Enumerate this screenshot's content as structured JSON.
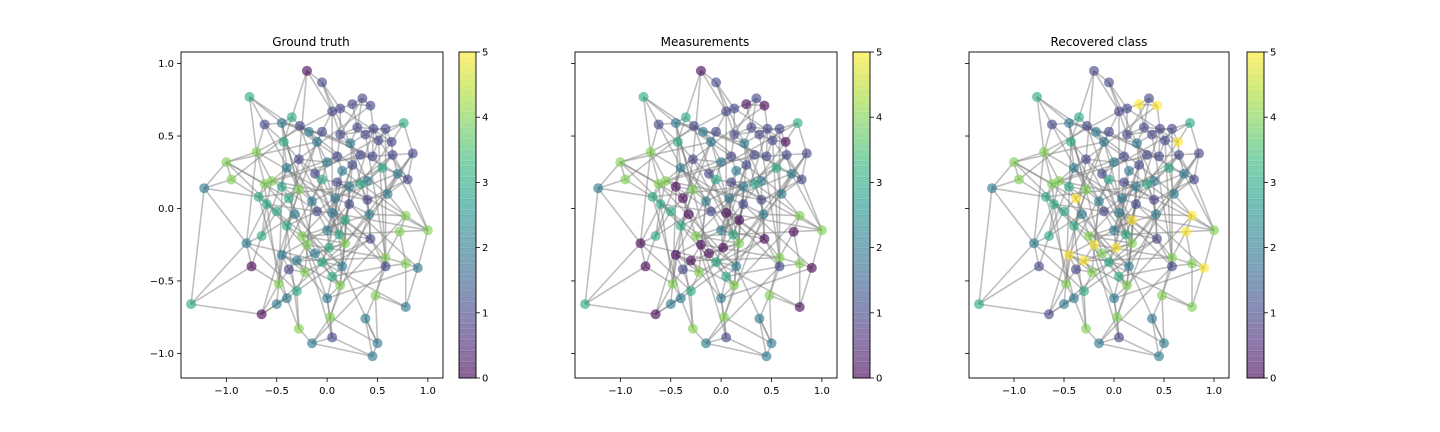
{
  "colors": {
    "viridis": [
      "#440154",
      "#482878",
      "#3e4989",
      "#31688e",
      "#26828e",
      "#1f9e89",
      "#35b779",
      "#6ece58",
      "#b5de2b",
      "#fde725"
    ],
    "edge": "#808080"
  },
  "chart_data": {
    "type": "scatter",
    "description_kind": "network graph (nodes with edges) colored by class, three panels",
    "panels": [
      {
        "title": "Ground truth",
        "class_key": "truth"
      },
      {
        "title": "Measurements",
        "class_key": "meas"
      },
      {
        "title": "Recovered class",
        "class_key": "rec"
      }
    ],
    "xlim": [
      -1.45,
      1.15
    ],
    "ylim": [
      -1.17,
      1.08
    ],
    "xticks": [
      -1.0,
      -0.5,
      0.0,
      0.5,
      1.0
    ],
    "xtick_labels": [
      "−1.0",
      "−0.5",
      "0.0",
      "0.5",
      "1.0"
    ],
    "yticks": [
      1.0,
      0.5,
      0.0,
      -0.5,
      -1.0
    ],
    "ytick_labels": [
      "1.0",
      "0.5",
      "0.0",
      "−0.5",
      "−1.0"
    ],
    "sharey": true,
    "colorbar": {
      "min": 0,
      "max": 5,
      "ticks": [
        0,
        1,
        2,
        3,
        4,
        5
      ],
      "tick_labels": [
        "0",
        "1",
        "2",
        "3",
        "4",
        "5"
      ],
      "colormap": "viridis"
    },
    "nodes": [
      {
        "x": -0.2,
        "y": 0.95,
        "truth": 0,
        "meas": 0,
        "rec": 1
      },
      {
        "x": -0.05,
        "y": 0.87,
        "truth": 1,
        "meas": 1,
        "rec": 1
      },
      {
        "x": -0.77,
        "y": 0.77,
        "truth": 3,
        "meas": 3,
        "rec": 3
      },
      {
        "x": 0.35,
        "y": 0.76,
        "truth": 1,
        "meas": 1,
        "rec": 1
      },
      {
        "x": 0.25,
        "y": 0.72,
        "truth": 1,
        "meas": 0,
        "rec": 5
      },
      {
        "x": 0.43,
        "y": 0.71,
        "truth": 1,
        "meas": 0,
        "rec": 5
      },
      {
        "x": 0.13,
        "y": 0.69,
        "truth": 1,
        "meas": 1,
        "rec": 1
      },
      {
        "x": 0.05,
        "y": 0.67,
        "truth": 1,
        "meas": 1,
        "rec": 1
      },
      {
        "x": -0.35,
        "y": 0.63,
        "truth": 3,
        "meas": 3,
        "rec": 3
      },
      {
        "x": -0.62,
        "y": 0.58,
        "truth": 1,
        "meas": 1,
        "rec": 1
      },
      {
        "x": -0.45,
        "y": 0.59,
        "truth": 2,
        "meas": 2,
        "rec": 2
      },
      {
        "x": 0.76,
        "y": 0.59,
        "truth": 3,
        "meas": 3,
        "rec": 3
      },
      {
        "x": -0.27,
        "y": 0.57,
        "truth": 1,
        "meas": 1,
        "rec": 1
      },
      {
        "x": 0.3,
        "y": 0.56,
        "truth": 1,
        "meas": 1,
        "rec": 1
      },
      {
        "x": 0.46,
        "y": 0.55,
        "truth": 1,
        "meas": 1,
        "rec": 1
      },
      {
        "x": 0.58,
        "y": 0.55,
        "truth": 1,
        "meas": 1,
        "rec": 1
      },
      {
        "x": -0.18,
        "y": 0.53,
        "truth": 2,
        "meas": 2,
        "rec": 2
      },
      {
        "x": -0.05,
        "y": 0.53,
        "truth": 1,
        "meas": 1,
        "rec": 1
      },
      {
        "x": 0.13,
        "y": 0.51,
        "truth": 1,
        "meas": 1,
        "rec": 1
      },
      {
        "x": 0.38,
        "y": 0.51,
        "truth": 1,
        "meas": 1,
        "rec": 1
      },
      {
        "x": 0.64,
        "y": 0.46,
        "truth": 1,
        "meas": 0,
        "rec": 5
      },
      {
        "x": 0.51,
        "y": 0.47,
        "truth": 1,
        "meas": 1,
        "rec": 1
      },
      {
        "x": -0.43,
        "y": 0.46,
        "truth": 3,
        "meas": 3,
        "rec": 3
      },
      {
        "x": -0.1,
        "y": 0.46,
        "truth": 2,
        "meas": 2,
        "rec": 2
      },
      {
        "x": 0.23,
        "y": 0.45,
        "truth": 2,
        "meas": 2,
        "rec": 2
      },
      {
        "x": -0.7,
        "y": 0.39,
        "truth": 4,
        "meas": 4,
        "rec": 4
      },
      {
        "x": 0.85,
        "y": 0.38,
        "truth": 1,
        "meas": 1,
        "rec": 1
      },
      {
        "x": 0.65,
        "y": 0.37,
        "truth": 1,
        "meas": 1,
        "rec": 1
      },
      {
        "x": 0.33,
        "y": 0.37,
        "truth": 1,
        "meas": 1,
        "rec": 1
      },
      {
        "x": 0.1,
        "y": 0.36,
        "truth": 1,
        "meas": 1,
        "rec": 1
      },
      {
        "x": 0.45,
        "y": 0.36,
        "truth": 1,
        "meas": 1,
        "rec": 1
      },
      {
        "x": -0.28,
        "y": 0.34,
        "truth": 1,
        "meas": 1,
        "rec": 1
      },
      {
        "x": 0.0,
        "y": 0.32,
        "truth": 2,
        "meas": 2,
        "rec": 2
      },
      {
        "x": -1.0,
        "y": 0.32,
        "truth": 4,
        "meas": 4,
        "rec": 4
      },
      {
        "x": 0.25,
        "y": 0.3,
        "truth": 1,
        "meas": 1,
        "rec": 1
      },
      {
        "x": 0.55,
        "y": 0.28,
        "truth": 3,
        "meas": 3,
        "rec": 3
      },
      {
        "x": -0.4,
        "y": 0.28,
        "truth": 2,
        "meas": 2,
        "rec": 2
      },
      {
        "x": 0.15,
        "y": 0.26,
        "truth": 2,
        "meas": 2,
        "rec": 2
      },
      {
        "x": 0.7,
        "y": 0.24,
        "truth": 2,
        "meas": 2,
        "rec": 2
      },
      {
        "x": -0.12,
        "y": 0.24,
        "truth": 1,
        "meas": 1,
        "rec": 1
      },
      {
        "x": -0.95,
        "y": 0.2,
        "truth": 4,
        "meas": 4,
        "rec": 4
      },
      {
        "x": 0.8,
        "y": 0.2,
        "truth": 1,
        "meas": 1,
        "rec": 1
      },
      {
        "x": -0.05,
        "y": 0.2,
        "truth": 3,
        "meas": 3,
        "rec": 3
      },
      {
        "x": 0.4,
        "y": 0.19,
        "truth": 2,
        "meas": 2,
        "rec": 2
      },
      {
        "x": 0.1,
        "y": 0.18,
        "truth": 1,
        "meas": 1,
        "rec": 1
      },
      {
        "x": -0.62,
        "y": 0.17,
        "truth": 4,
        "meas": 4,
        "rec": 4
      },
      {
        "x": -0.55,
        "y": 0.19,
        "truth": 4,
        "meas": 4,
        "rec": 4
      },
      {
        "x": 0.33,
        "y": 0.17,
        "truth": 3,
        "meas": 3,
        "rec": 3
      },
      {
        "x": -0.45,
        "y": 0.15,
        "truth": 3,
        "meas": 0,
        "rec": 3
      },
      {
        "x": 0.22,
        "y": 0.15,
        "truth": 2,
        "meas": 2,
        "rec": 2
      },
      {
        "x": -1.22,
        "y": 0.14,
        "truth": 2,
        "meas": 2,
        "rec": 2
      },
      {
        "x": -0.28,
        "y": 0.13,
        "truth": 4,
        "meas": 4,
        "rec": 4
      },
      {
        "x": 0.6,
        "y": 0.1,
        "truth": 2,
        "meas": 2,
        "rec": 2
      },
      {
        "x": -0.68,
        "y": 0.08,
        "truth": 3,
        "meas": 3,
        "rec": 3
      },
      {
        "x": -0.38,
        "y": 0.07,
        "truth": 3,
        "meas": 0,
        "rec": 5
      },
      {
        "x": 0.08,
        "y": 0.07,
        "truth": 2,
        "meas": 2,
        "rec": 2
      },
      {
        "x": 0.4,
        "y": 0.06,
        "truth": 1,
        "meas": 1,
        "rec": 1
      },
      {
        "x": -0.6,
        "y": 0.03,
        "truth": 3,
        "meas": 3,
        "rec": 3
      },
      {
        "x": -0.15,
        "y": 0.05,
        "truth": 2,
        "meas": 2,
        "rec": 2
      },
      {
        "x": 0.22,
        "y": 0.03,
        "truth": 1,
        "meas": 1,
        "rec": 1
      },
      {
        "x": 0.78,
        "y": -0.05,
        "truth": 4,
        "meas": 4,
        "rec": 5
      },
      {
        "x": -0.5,
        "y": -0.02,
        "truth": 3,
        "meas": 3,
        "rec": 3
      },
      {
        "x": -0.1,
        "y": -0.02,
        "truth": 1,
        "meas": 1,
        "rec": 1
      },
      {
        "x": 0.05,
        "y": -0.03,
        "truth": 2,
        "meas": 0,
        "rec": 2
      },
      {
        "x": 0.42,
        "y": -0.04,
        "truth": 2,
        "meas": 2,
        "rec": 2
      },
      {
        "x": -0.32,
        "y": -0.04,
        "truth": 2,
        "meas": 0,
        "rec": 2
      },
      {
        "x": 0.18,
        "y": -0.08,
        "truth": 3,
        "meas": 0,
        "rec": 5
      },
      {
        "x": -0.4,
        "y": -0.12,
        "truth": 3,
        "meas": 3,
        "rec": 3
      },
      {
        "x": 0.72,
        "y": -0.16,
        "truth": 4,
        "meas": 0,
        "rec": 5
      },
      {
        "x": 0.0,
        "y": -0.15,
        "truth": 2,
        "meas": 2,
        "rec": 2
      },
      {
        "x": 1.0,
        "y": -0.15,
        "truth": 4,
        "meas": 4,
        "rec": 4
      },
      {
        "x": -0.65,
        "y": -0.19,
        "truth": 3,
        "meas": 3,
        "rec": 3
      },
      {
        "x": 0.12,
        "y": -0.18,
        "truth": 3,
        "meas": 3,
        "rec": 3
      },
      {
        "x": -0.25,
        "y": -0.19,
        "truth": 4,
        "meas": 4,
        "rec": 4
      },
      {
        "x": 0.43,
        "y": -0.21,
        "truth": 1,
        "meas": 0,
        "rec": 1
      },
      {
        "x": -0.8,
        "y": -0.24,
        "truth": 2,
        "meas": 0,
        "rec": 2
      },
      {
        "x": 0.18,
        "y": -0.24,
        "truth": 4,
        "meas": 4,
        "rec": 4
      },
      {
        "x": -0.2,
        "y": -0.25,
        "truth": 4,
        "meas": 0,
        "rec": 5
      },
      {
        "x": 0.02,
        "y": -0.27,
        "truth": 3,
        "meas": 0,
        "rec": 5
      },
      {
        "x": -0.45,
        "y": -0.32,
        "truth": 2,
        "meas": 0,
        "rec": 5
      },
      {
        "x": -0.12,
        "y": -0.31,
        "truth": 2,
        "meas": 0,
        "rec": 4
      },
      {
        "x": -0.75,
        "y": -0.4,
        "truth": 0,
        "meas": 0,
        "rec": 1
      },
      {
        "x": 0.58,
        "y": -0.34,
        "truth": 4,
        "meas": 4,
        "rec": 4
      },
      {
        "x": -0.3,
        "y": -0.36,
        "truth": 2,
        "meas": 0,
        "rec": 5
      },
      {
        "x": 0.78,
        "y": -0.38,
        "truth": 4,
        "meas": 4,
        "rec": 4
      },
      {
        "x": -0.05,
        "y": -0.37,
        "truth": 3,
        "meas": 3,
        "rec": 3
      },
      {
        "x": 0.9,
        "y": -0.41,
        "truth": 2,
        "meas": 0,
        "rec": 5
      },
      {
        "x": 0.15,
        "y": -0.4,
        "truth": 2,
        "meas": 2,
        "rec": 2
      },
      {
        "x": -0.38,
        "y": -0.42,
        "truth": 1,
        "meas": 1,
        "rec": 1
      },
      {
        "x": 0.58,
        "y": -0.4,
        "truth": 1,
        "meas": 1,
        "rec": 1
      },
      {
        "x": -0.22,
        "y": -0.44,
        "truth": 4,
        "meas": 4,
        "rec": 4
      },
      {
        "x": 0.05,
        "y": -0.47,
        "truth": 3,
        "meas": 3,
        "rec": 3
      },
      {
        "x": -0.48,
        "y": -0.52,
        "truth": 4,
        "meas": 4,
        "rec": 4
      },
      {
        "x": 0.13,
        "y": -0.53,
        "truth": 4,
        "meas": 4,
        "rec": 4
      },
      {
        "x": -0.3,
        "y": -0.57,
        "truth": 3,
        "meas": 3,
        "rec": 3
      },
      {
        "x": 0.48,
        "y": -0.6,
        "truth": 4,
        "meas": 4,
        "rec": 4
      },
      {
        "x": 0.0,
        "y": -0.62,
        "truth": 2,
        "meas": 2,
        "rec": 2
      },
      {
        "x": -0.4,
        "y": -0.62,
        "truth": 2,
        "meas": 2,
        "rec": 2
      },
      {
        "x": -1.35,
        "y": -0.66,
        "truth": 3,
        "meas": 3,
        "rec": 3
      },
      {
        "x": -0.5,
        "y": -0.66,
        "truth": 2,
        "meas": 2,
        "rec": 2
      },
      {
        "x": 0.78,
        "y": -0.68,
        "truth": 2,
        "meas": 0,
        "rec": 4
      },
      {
        "x": -0.65,
        "y": -0.73,
        "truth": 0,
        "meas": 0,
        "rec": 1
      },
      {
        "x": 0.03,
        "y": -0.75,
        "truth": 4,
        "meas": 4,
        "rec": 4
      },
      {
        "x": 0.38,
        "y": -0.76,
        "truth": 2,
        "meas": 2,
        "rec": 2
      },
      {
        "x": -0.28,
        "y": -0.83,
        "truth": 4,
        "meas": 4,
        "rec": 4
      },
      {
        "x": 0.05,
        "y": -0.89,
        "truth": 1,
        "meas": 1,
        "rec": 1
      },
      {
        "x": -0.15,
        "y": -0.93,
        "truth": 2,
        "meas": 2,
        "rec": 2
      },
      {
        "x": 0.5,
        "y": -0.93,
        "truth": 2,
        "meas": 2,
        "rec": 2
      },
      {
        "x": 0.45,
        "y": -1.02,
        "truth": 2,
        "meas": 2,
        "rec": 2
      }
    ],
    "edge_seed": 12345
  }
}
